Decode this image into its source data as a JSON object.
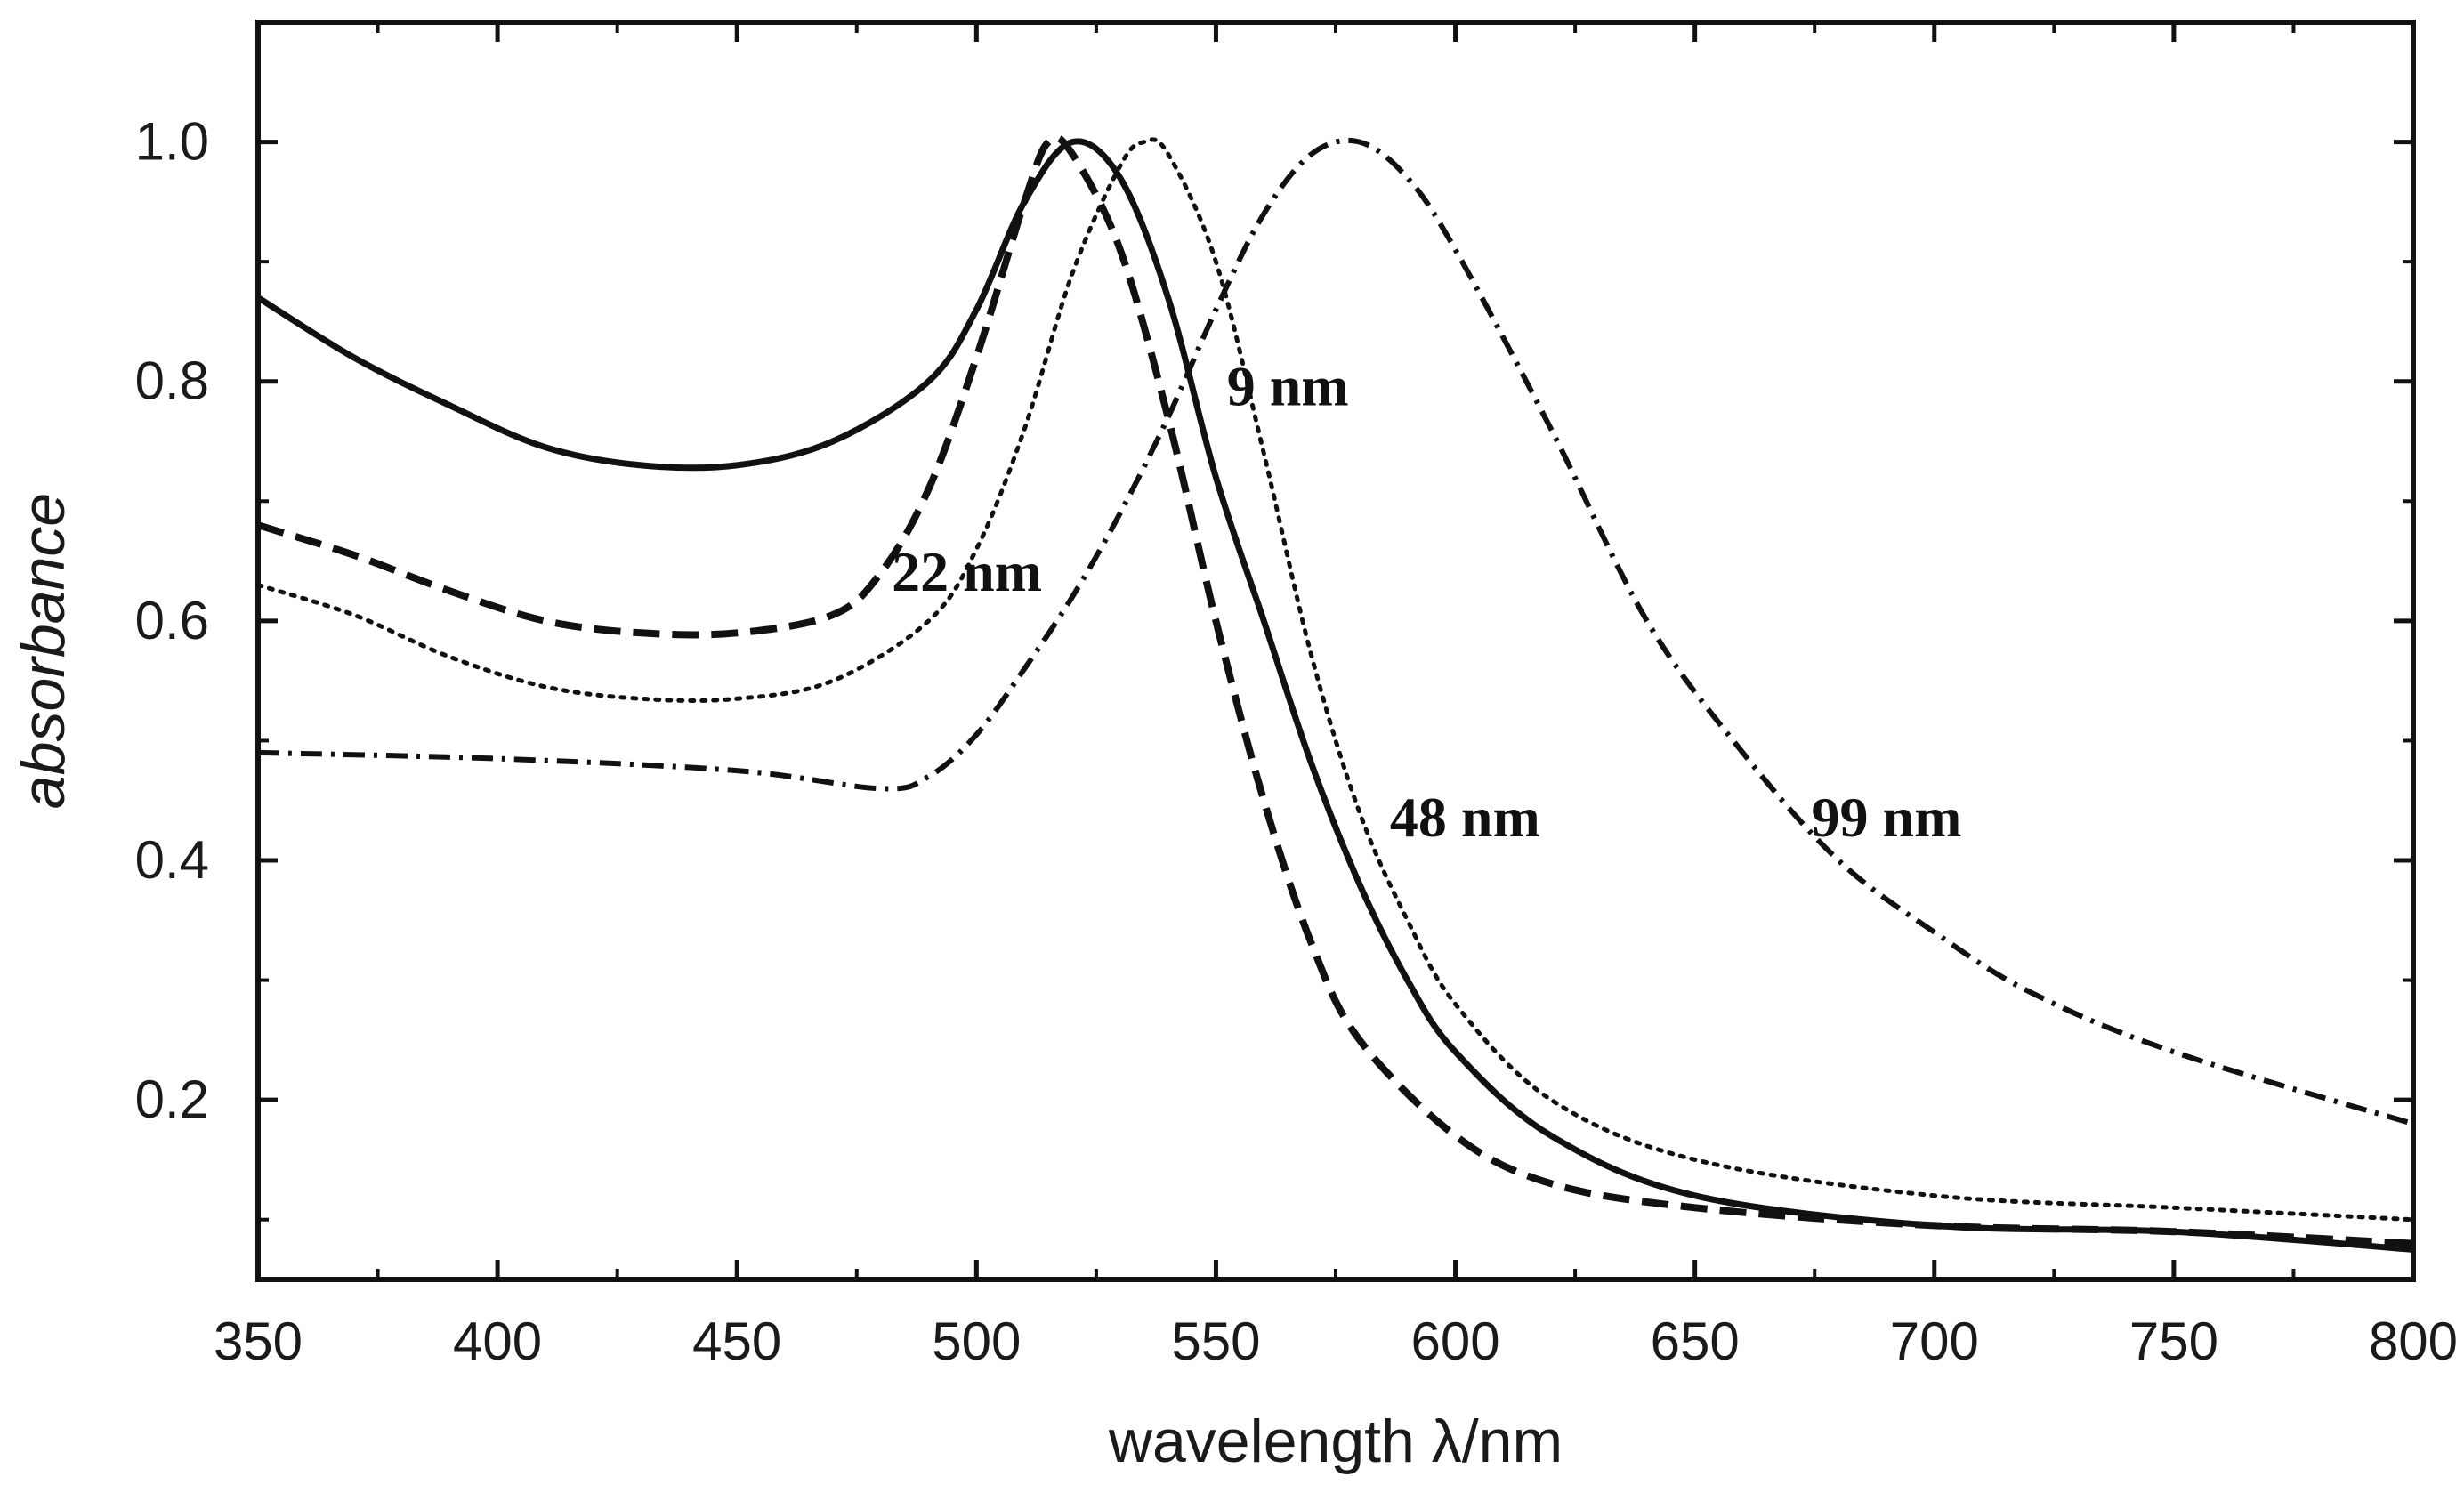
{
  "chart_data": {
    "type": "line",
    "title": "",
    "xlabel": "wavelength λ/nm",
    "ylabel": "absorbance",
    "xlim": [
      350,
      800
    ],
    "ylim": [
      0.05,
      1.1
    ],
    "xticks": [
      350,
      400,
      450,
      500,
      550,
      600,
      650,
      700,
      750,
      800
    ],
    "yticks": [
      0.2,
      0.4,
      0.6,
      0.8,
      1.0
    ],
    "xtick_labels": [
      "350",
      "400",
      "450",
      "500",
      "550",
      "600",
      "650",
      "700",
      "750",
      "800"
    ],
    "ytick_labels": [
      "0.2",
      "0.4",
      "0.6",
      "0.8",
      "1.0"
    ],
    "grid": false,
    "legend": "none",
    "series": [
      {
        "name": "9 nm",
        "style": "solid",
        "color": "#111111",
        "x": [
          350,
          370,
          390,
          410,
          430,
          450,
          470,
          490,
          500,
          510,
          520,
          530,
          540,
          550,
          560,
          570,
          580,
          590,
          600,
          620,
          650,
          700,
          750,
          800
        ],
        "y": [
          0.87,
          0.82,
          0.78,
          0.745,
          0.73,
          0.73,
          0.75,
          0.8,
          0.86,
          0.95,
          1.0,
          0.97,
          0.87,
          0.72,
          0.6,
          0.48,
          0.38,
          0.3,
          0.24,
          0.17,
          0.12,
          0.095,
          0.09,
          0.075
        ]
      },
      {
        "name": "22 nm",
        "style": "dashed",
        "color": "#111111",
        "x": [
          350,
          370,
          390,
          410,
          430,
          450,
          470,
          480,
          490,
          500,
          510,
          515,
          520,
          530,
          540,
          550,
          560,
          570,
          580,
          600,
          620,
          650,
          700,
          750,
          800
        ],
        "y": [
          0.68,
          0.655,
          0.625,
          0.6,
          0.59,
          0.59,
          0.605,
          0.64,
          0.71,
          0.82,
          0.95,
          1.0,
          0.99,
          0.91,
          0.77,
          0.6,
          0.45,
          0.33,
          0.25,
          0.17,
          0.13,
          0.11,
          0.095,
          0.09,
          0.08
        ]
      },
      {
        "name": "48 nm",
        "style": "dotted",
        "color": "#111111",
        "x": [
          350,
          370,
          390,
          410,
          430,
          450,
          470,
          490,
          500,
          510,
          520,
          530,
          535,
          540,
          550,
          560,
          570,
          580,
          590,
          600,
          620,
          650,
          700,
          750,
          800
        ],
        "y": [
          0.63,
          0.605,
          0.57,
          0.545,
          0.535,
          0.535,
          0.55,
          0.6,
          0.66,
          0.76,
          0.89,
          0.98,
          1.0,
          0.99,
          0.9,
          0.74,
          0.57,
          0.44,
          0.35,
          0.28,
          0.2,
          0.15,
          0.12,
          0.11,
          0.1
        ]
      },
      {
        "name": "99 nm",
        "style": "dash-dot",
        "color": "#111111",
        "x": [
          350,
          400,
          450,
          480,
          490,
          500,
          510,
          520,
          530,
          540,
          550,
          560,
          570,
          580,
          590,
          600,
          620,
          640,
          660,
          680,
          700,
          720,
          750,
          800
        ],
        "y": [
          0.49,
          0.485,
          0.475,
          0.46,
          0.47,
          0.505,
          0.56,
          0.62,
          0.69,
          0.77,
          0.86,
          0.94,
          0.99,
          1.0,
          0.97,
          0.91,
          0.76,
          0.6,
          0.49,
          0.4,
          0.34,
          0.29,
          0.24,
          0.18
        ]
      }
    ],
    "annotations": [
      {
        "text": "9 nm",
        "x": 565,
        "y": 0.78
      },
      {
        "text": "22 nm",
        "x": 498,
        "y": 0.625
      },
      {
        "text": "48 nm",
        "x": 602,
        "y": 0.42
      },
      {
        "text": "99 nm",
        "x": 690,
        "y": 0.42
      }
    ]
  }
}
